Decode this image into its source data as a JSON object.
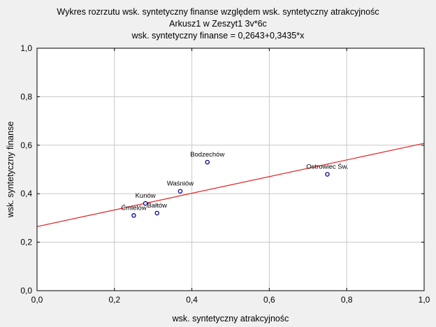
{
  "chart_data": {
    "type": "scatter",
    "title_lines": [
      "Wykres rozrzutu   wsk. syntetyczny finanse względem wsk. syntetyczny atrakcyjnośc",
      "Arkusz1 w Zeszyt1 3v*6c",
      "wsk. syntetyczny finanse = 0,2643+0,3435*x"
    ],
    "xlabel": "wsk. syntetyczny atrakcyjnośc",
    "ylabel": "wsk. syntetyczny finanse",
    "xlim": [
      0,
      1
    ],
    "ylim": [
      0,
      1
    ],
    "xticks": [
      "0,0",
      "0,2",
      "0,4",
      "0,6",
      "0,8",
      "1,0"
    ],
    "yticks": [
      "0,0",
      "0,2",
      "0,4",
      "0,6",
      "0,8",
      "1,0"
    ],
    "grid": true,
    "points": [
      {
        "label": "Bodzechów",
        "x": 0.44,
        "y": 0.53
      },
      {
        "label": "Ostrowiec Św.",
        "x": 0.75,
        "y": 0.48
      },
      {
        "label": "Waśniów",
        "x": 0.37,
        "y": 0.41
      },
      {
        "label": "Kunów",
        "x": 0.28,
        "y": 0.36
      },
      {
        "label": "Bałtów",
        "x": 0.31,
        "y": 0.32
      },
      {
        "label": "Ćmielów",
        "x": 0.25,
        "y": 0.31
      }
    ],
    "regression": {
      "intercept": 0.2643,
      "slope": 0.3435
    },
    "colors": {
      "points": "#00008b",
      "regression": "#e02020",
      "grid": "#c8c8c8",
      "plot_bg": "#ffffff",
      "page_bg": "#f0f0f0"
    }
  }
}
